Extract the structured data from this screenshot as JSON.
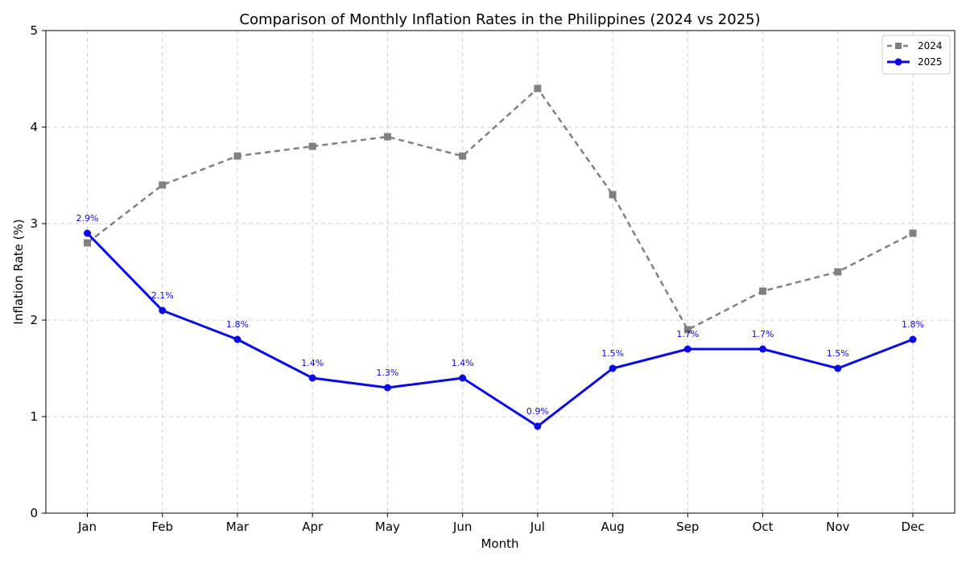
{
  "chart_data": {
    "type": "line",
    "title": "Comparison of Monthly Inflation Rates in the Philippines (2024 vs 2025)",
    "xlabel": "Month",
    "ylabel": "Inflation Rate (%)",
    "categories": [
      "Jan",
      "Feb",
      "Mar",
      "Apr",
      "May",
      "Jun",
      "Jul",
      "Aug",
      "Sep",
      "Oct",
      "Nov",
      "Dec"
    ],
    "ylim": [
      0,
      5
    ],
    "yticks": [
      "0",
      "1",
      "2",
      "3",
      "4",
      "5"
    ],
    "grid": true,
    "legend_position": "top-right",
    "series": [
      {
        "name": "2024",
        "values": [
          2.8,
          3.4,
          3.7,
          3.8,
          3.9,
          3.7,
          4.4,
          3.3,
          1.9,
          2.3,
          2.5,
          2.9
        ],
        "color": "#808080",
        "line_style": "dashed",
        "marker": "square"
      },
      {
        "name": "2025",
        "values": [
          2.9,
          2.1,
          1.8,
          1.4,
          1.3,
          1.4,
          0.9,
          1.5,
          1.7,
          1.7,
          1.5,
          1.8
        ],
        "color": "#0a0ae6",
        "line_style": "solid",
        "marker": "circle",
        "data_labels": [
          "2.9%",
          "2.1%",
          "1.8%",
          "1.4%",
          "1.3%",
          "1.4%",
          "0.9%",
          "1.5%",
          "1.7%",
          "1.7%",
          "1.5%",
          "1.8%"
        ]
      }
    ]
  }
}
